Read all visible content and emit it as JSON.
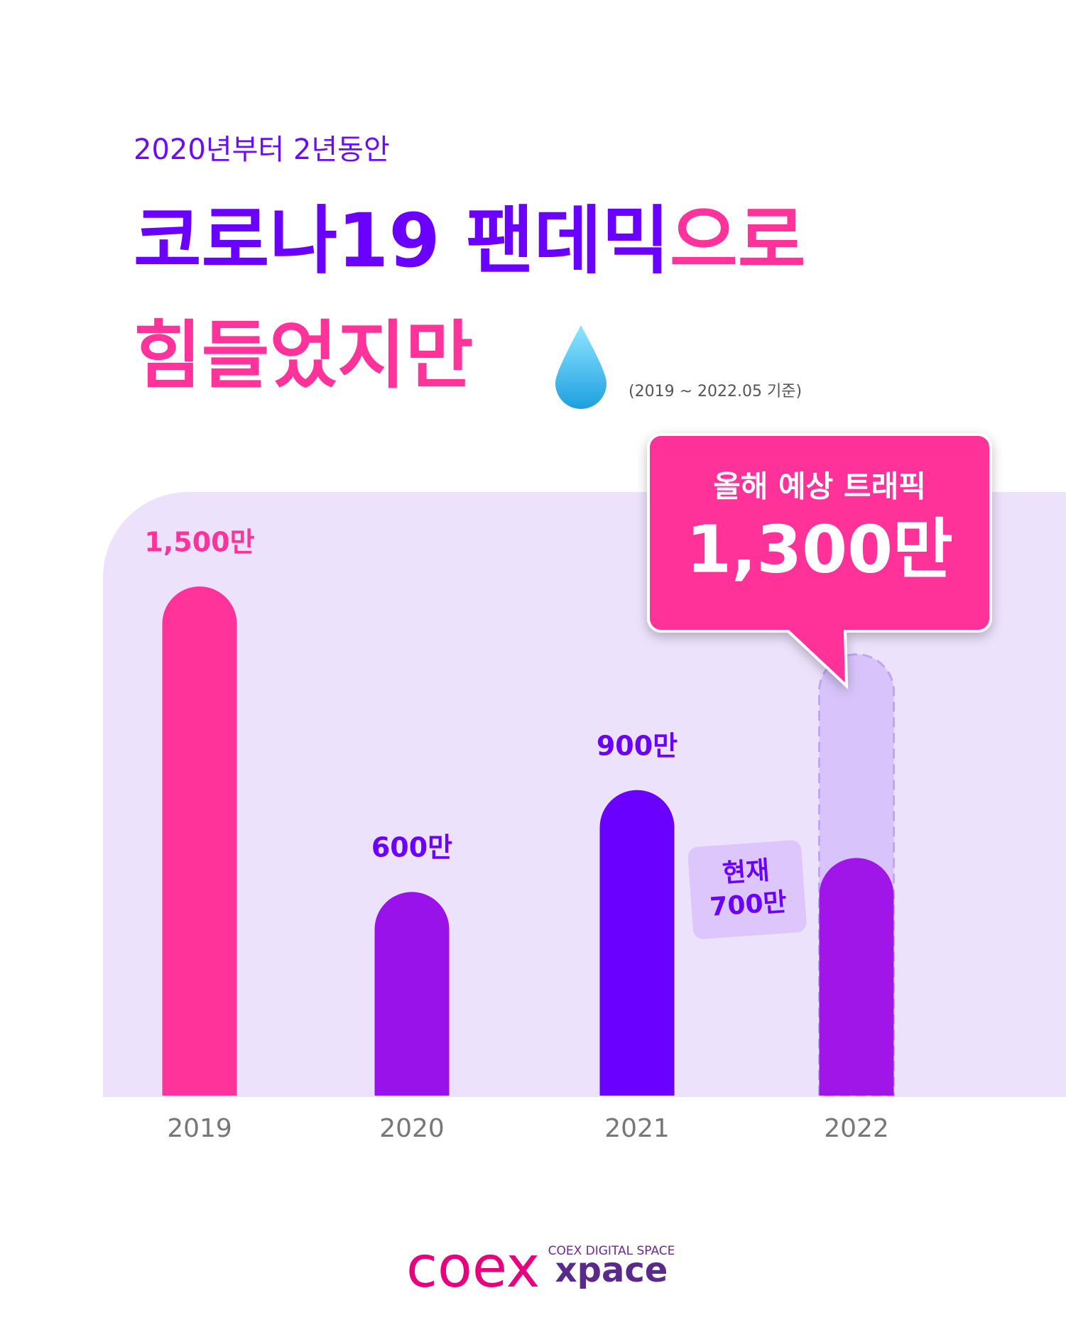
{
  "subtitle": "2020년부터 2년동안",
  "title": [
    "코로나19 팬데믹",
    "으로",
    "힘들었지만"
  ],
  "note": "(2019 ~ 2022.05 기준)",
  "chart_data": {
    "type": "bar",
    "categories": [
      "2019",
      "2020",
      "2021",
      "2022"
    ],
    "values": [
      1500,
      600,
      900,
      700
    ],
    "value_labels": [
      "1,500만",
      "600만",
      "900만",
      "700만"
    ],
    "colors": [
      "#ff3399",
      "#9a12ea",
      "#6a00ff",
      "#a015e8"
    ],
    "current_label": "현재",
    "forecast": {
      "label": "올해 예상 트래픽",
      "value": 1300,
      "value_label": "1,300만"
    }
  },
  "footer": {
    "logo": "coex",
    "tagline": "COEX DIGITAL SPACE",
    "brand": "xpace"
  }
}
